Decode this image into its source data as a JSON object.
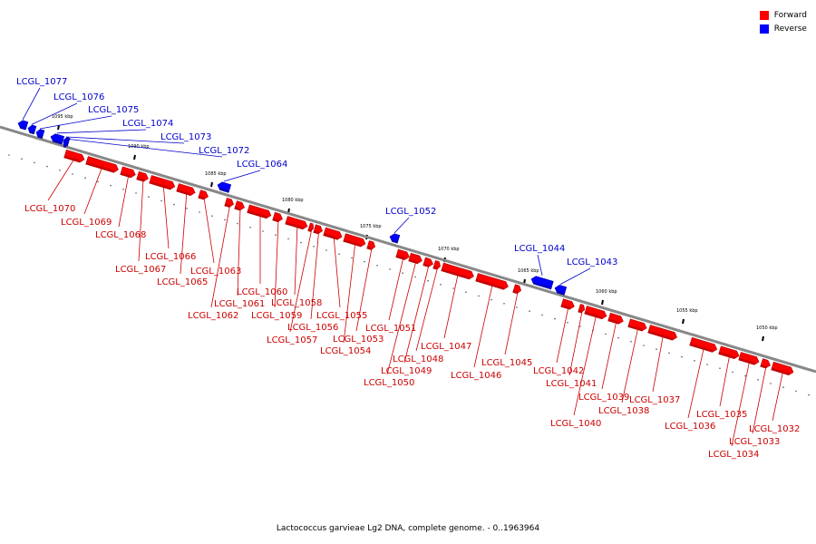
{
  "caption": "Lactococcus garvieae Lg2 DNA, complete genome. - 0..1963964",
  "legend": {
    "forward": {
      "label": "Forward",
      "color": "#ff0000"
    },
    "reverse": {
      "label": "Reverse",
      "color": "#0000ff"
    }
  },
  "colors": {
    "forward_label": "#cc0000",
    "reverse_label": "#0000cc",
    "backbone": "#888888"
  },
  "scale_labels": [
    "1095 kbp",
    "1090 kbp",
    "1085 kbp",
    "1080 kbp",
    "1075 kbp",
    "1070 kbp",
    "1065 kbp",
    "1060 kbp",
    "1055 kbp",
    "1050 kbp"
  ],
  "genes": [
    {
      "id": "LCGL_1077",
      "strand": "reverse"
    },
    {
      "id": "LCGL_1076",
      "strand": "reverse"
    },
    {
      "id": "LCGL_1075",
      "strand": "reverse"
    },
    {
      "id": "LCGL_1074",
      "strand": "reverse"
    },
    {
      "id": "LCGL_1073",
      "strand": "reverse"
    },
    {
      "id": "LCGL_1072",
      "strand": "reverse"
    },
    {
      "id": "LCGL_1064",
      "strand": "reverse"
    },
    {
      "id": "LCGL_1052",
      "strand": "reverse"
    },
    {
      "id": "LCGL_1044",
      "strand": "reverse"
    },
    {
      "id": "LCGL_1043",
      "strand": "reverse"
    },
    {
      "id": "LCGL_1070",
      "strand": "forward"
    },
    {
      "id": "LCGL_1069",
      "strand": "forward"
    },
    {
      "id": "LCGL_1068",
      "strand": "forward"
    },
    {
      "id": "LCGL_1067",
      "strand": "forward"
    },
    {
      "id": "LCGL_1066",
      "strand": "forward"
    },
    {
      "id": "LCGL_1065",
      "strand": "forward"
    },
    {
      "id": "LCGL_1063",
      "strand": "forward"
    },
    {
      "id": "LCGL_1062",
      "strand": "forward"
    },
    {
      "id": "LCGL_1061",
      "strand": "forward"
    },
    {
      "id": "LCGL_1060",
      "strand": "forward"
    },
    {
      "id": "LCGL_1059",
      "strand": "forward"
    },
    {
      "id": "LCGL_1058",
      "strand": "forward"
    },
    {
      "id": "LCGL_1057",
      "strand": "forward"
    },
    {
      "id": "LCGL_1056",
      "strand": "forward"
    },
    {
      "id": "LCGL_1055",
      "strand": "forward"
    },
    {
      "id": "LCGL_1054",
      "strand": "forward"
    },
    {
      "id": "LCGL_1053",
      "strand": "forward"
    },
    {
      "id": "LCGL_1051",
      "strand": "forward"
    },
    {
      "id": "LCGL_1050",
      "strand": "forward"
    },
    {
      "id": "LCGL_1049",
      "strand": "forward"
    },
    {
      "id": "LCGL_1048",
      "strand": "forward"
    },
    {
      "id": "LCGL_1047",
      "strand": "forward"
    },
    {
      "id": "LCGL_1046",
      "strand": "forward"
    },
    {
      "id": "LCGL_1045",
      "strand": "forward"
    },
    {
      "id": "LCGL_1042",
      "strand": "forward"
    },
    {
      "id": "LCGL_1041",
      "strand": "forward"
    },
    {
      "id": "LCGL_1040",
      "strand": "forward"
    },
    {
      "id": "LCGL_1039",
      "strand": "forward"
    },
    {
      "id": "LCGL_1038",
      "strand": "forward"
    },
    {
      "id": "LCGL_1037",
      "strand": "forward"
    },
    {
      "id": "LCGL_1036",
      "strand": "forward"
    },
    {
      "id": "LCGL_1035",
      "strand": "forward"
    },
    {
      "id": "LCGL_1034",
      "strand": "forward"
    },
    {
      "id": "LCGL_1033",
      "strand": "forward"
    },
    {
      "id": "LCGL_1032",
      "strand": "forward"
    }
  ]
}
